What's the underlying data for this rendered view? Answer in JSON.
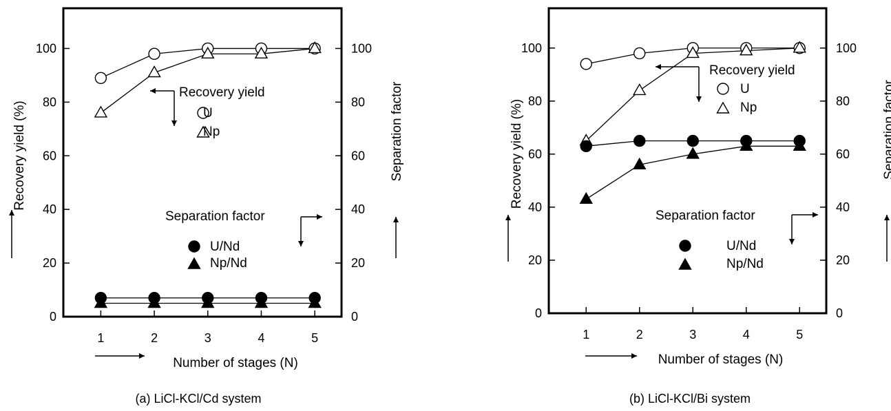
{
  "chart_data": [
    {
      "type": "line",
      "caption": "(a) LiCl-KCl/Cd system",
      "xlabel": "Number of stages (N)",
      "ylabel": "Recovery yield (%)",
      "y2label": "Separation factor",
      "categories": [
        1,
        2,
        3,
        4,
        5
      ],
      "xlim": [
        0.3,
        5.5
      ],
      "ylim": [
        0,
        115
      ],
      "y2lim": [
        0,
        115
      ],
      "xticks": [
        "1",
        "2",
        "3",
        "4",
        "5"
      ],
      "yticks": [
        "0",
        "20",
        "40",
        "60",
        "80",
        "100"
      ],
      "y2ticks": [
        "0",
        "20",
        "40",
        "60",
        "80",
        "100"
      ],
      "legend": {
        "yield_title": "Recovery yield",
        "sep_title": "Separation factor",
        "U": "U",
        "Np": "Np",
        "UNd": "U/Nd",
        "NpNd": "Np/Nd"
      },
      "series": [
        {
          "name": "U",
          "axis": "left",
          "marker": "circle-open",
          "values": [
            89,
            98,
            100,
            100,
            100
          ]
        },
        {
          "name": "Np",
          "axis": "left",
          "marker": "triangle-open",
          "values": [
            76,
            91,
            98,
            98,
            100
          ]
        },
        {
          "name": "U/Nd",
          "axis": "right",
          "marker": "circle-filled",
          "values": [
            7,
            7,
            7,
            7,
            7
          ]
        },
        {
          "name": "Np/Nd",
          "axis": "right",
          "marker": "triangle-filled",
          "values": [
            5,
            5,
            5,
            5,
            5
          ]
        }
      ]
    },
    {
      "type": "line",
      "caption": "(b) LiCl-KCl/Bi system",
      "xlabel": "Number of stages (N)",
      "ylabel": "Recovery yield (%)",
      "y2label": "Separation factor",
      "categories": [
        1,
        2,
        3,
        4,
        5
      ],
      "xlim": [
        0.3,
        5.5
      ],
      "ylim": [
        0,
        115
      ],
      "y2lim": [
        0,
        115
      ],
      "xticks": [
        "1",
        "2",
        "3",
        "4",
        "5"
      ],
      "yticks": [
        "0",
        "20",
        "40",
        "60",
        "80",
        "100"
      ],
      "y2ticks": [
        "0",
        "20",
        "40",
        "60",
        "80",
        "100"
      ],
      "legend": {
        "yield_title": "Recovery yield",
        "sep_title": "Separation factor",
        "U": "U",
        "Np": "Np",
        "UNd": "U/Nd",
        "NpNd": "Np/Nd"
      },
      "series": [
        {
          "name": "U",
          "axis": "left",
          "marker": "circle-open",
          "values": [
            94,
            98,
            100,
            100,
            100
          ]
        },
        {
          "name": "Np",
          "axis": "left",
          "marker": "triangle-open",
          "values": [
            65,
            84,
            98,
            99,
            100
          ]
        },
        {
          "name": "U/Nd",
          "axis": "right",
          "marker": "circle-filled",
          "values": [
            63,
            65,
            65,
            65,
            65
          ]
        },
        {
          "name": "Np/Nd",
          "axis": "right",
          "marker": "triangle-filled",
          "values": [
            43,
            56,
            60,
            63,
            63
          ]
        }
      ]
    }
  ]
}
